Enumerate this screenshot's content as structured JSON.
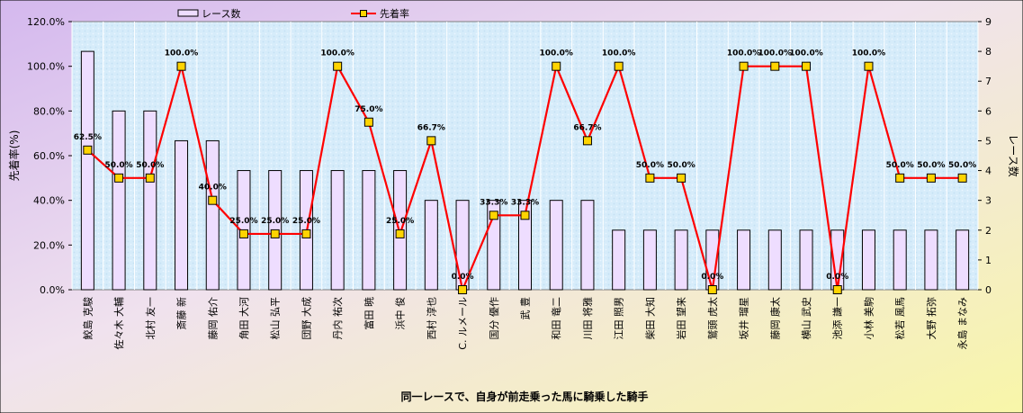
{
  "chart_data": {
    "type": "bar",
    "title": "",
    "xlabel": "同一レースで、自身が前走乗った馬に騎乗した騎手",
    "ylabel_left": "先着率(%)",
    "ylabel_right": "レース数",
    "ylim_left": [
      0,
      120
    ],
    "ylim_right": [
      0,
      9
    ],
    "grid": true,
    "legend_position": "top",
    "y_left_ticks": [
      "0.0%",
      "20.0%",
      "40.0%",
      "60.0%",
      "80.0%",
      "100.0%",
      "120.0%"
    ],
    "y_right_ticks": [
      "0",
      "1",
      "2",
      "3",
      "4",
      "5",
      "6",
      "7",
      "8",
      "9"
    ],
    "categories": [
      "鮫島 克駿",
      "佐々木 大輔",
      "北村 友一",
      "斎藤 新",
      "藤岡 佑介",
      "角田 大河",
      "松山 弘平",
      "団野 大成",
      "丹内 祐次",
      "富田 暁",
      "浜中 俊",
      "西村 淳也",
      "C. ルメール",
      "国分 優作",
      "武 豊",
      "和田 竜二",
      "川田 将雅",
      "江田 照男",
      "柴田 大知",
      "岩田 望来",
      "鷲頭 虎太",
      "坂井 瑠星",
      "藤岡 康太",
      "横山 武史",
      "池添 謙一",
      "小林 美駒",
      "松若 風馬",
      "大野 拓弥",
      "永島 まなみ"
    ],
    "series": [
      {
        "name": "レース数",
        "type": "bar",
        "axis": "right",
        "color": "#eeddff",
        "values": [
          8,
          6,
          6,
          5,
          5,
          4,
          4,
          4,
          4,
          4,
          4,
          3,
          3,
          3,
          3,
          3,
          3,
          2,
          2,
          2,
          2,
          2,
          2,
          2,
          2,
          2,
          2,
          2,
          2
        ]
      },
      {
        "name": "先着率",
        "type": "line",
        "axis": "left",
        "color": "#ff0000",
        "marker_color": "#ffd400",
        "values": [
          62.5,
          50.0,
          50.0,
          100.0,
          40.0,
          25.0,
          25.0,
          25.0,
          100.0,
          75.0,
          25.0,
          66.7,
          0.0,
          33.3,
          33.3,
          100.0,
          66.7,
          100.0,
          50.0,
          50.0,
          0.0,
          100.0,
          100.0,
          100.0,
          0.0,
          100.0,
          50.0,
          50.0,
          50.0
        ]
      }
    ],
    "data_labels": [
      "62.5%",
      "50.0%",
      "50.0%",
      "100.0%",
      "40.0%",
      "25.0%",
      "25.0%",
      "25.0%",
      "100.0%",
      "75.0%",
      "25.0%",
      "66.7%",
      "0.0%",
      "33.3%",
      "33.3%",
      "100.0%",
      "66.7%",
      "100.0%",
      "50.0%",
      "50.0%",
      "0.0%",
      "100.0%",
      "100.0%",
      "100.0%",
      "0.0%",
      "100.0%",
      "50.0%",
      "50.0%",
      "50.0%"
    ]
  },
  "legend": {
    "bar_label": "レース数",
    "line_label": "先着率"
  },
  "colors": {
    "background_top": "#e0c8f0",
    "background_bottom": "#f8f4b0",
    "plot_bg": "#dceefa",
    "bar_fill": "#eeddff",
    "line": "#ff0000",
    "marker": "#ffd400"
  }
}
